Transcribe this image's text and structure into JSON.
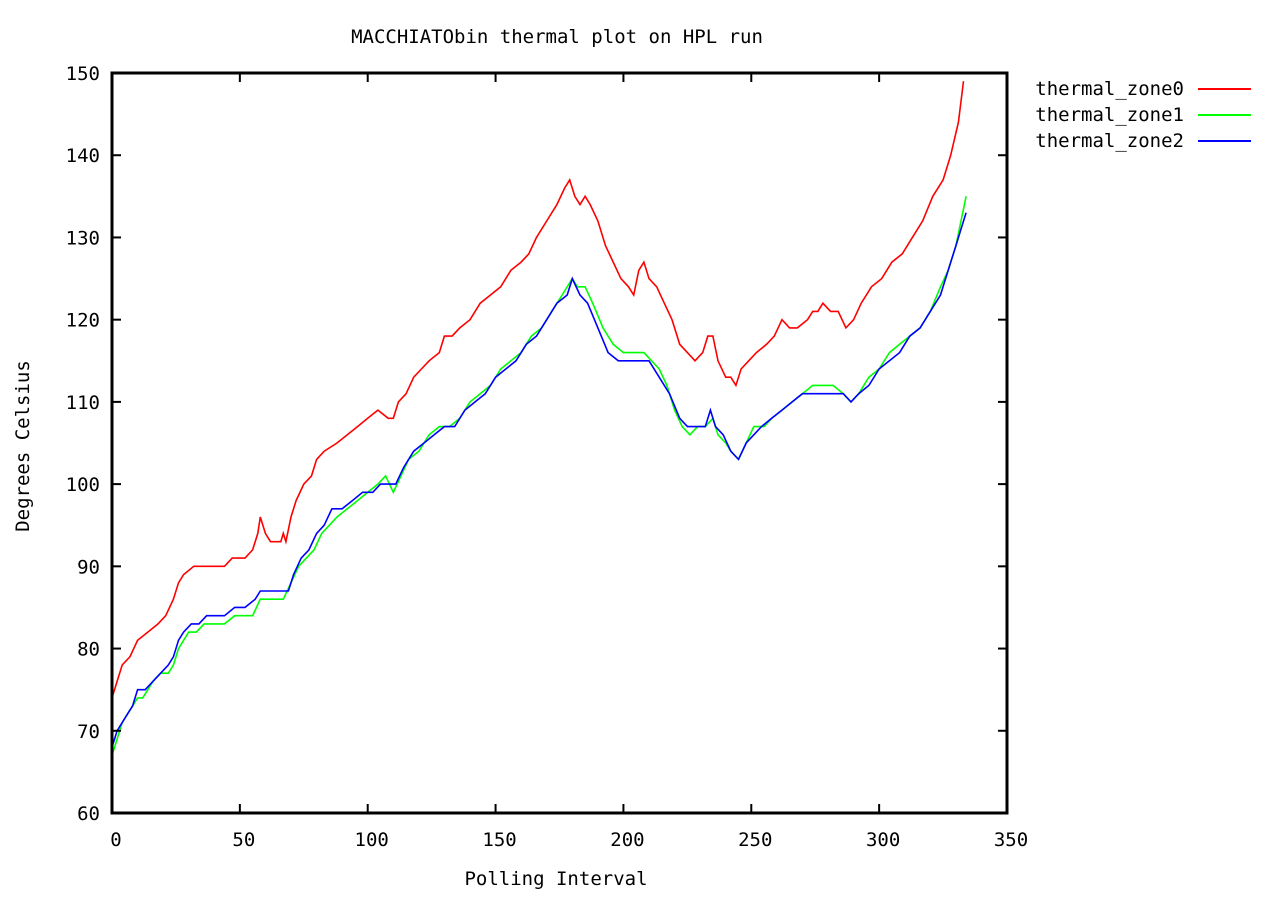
{
  "chart_data": {
    "type": "line",
    "title": "MACCHIATObin thermal plot on HPL run",
    "xlabel": "Polling Interval",
    "ylabel": "Degrees Celsius",
    "xlim": [
      0,
      350
    ],
    "ylim": [
      60,
      150
    ],
    "xticks": [
      0,
      50,
      100,
      150,
      200,
      250,
      300,
      350
    ],
    "yticks": [
      60,
      70,
      80,
      90,
      100,
      110,
      120,
      130,
      140,
      150
    ],
    "grid": false,
    "legend_position": "outside-top-right",
    "series": [
      {
        "name": "thermal_zone0",
        "color": "#ff0000",
        "points": [
          [
            0,
            74
          ],
          [
            2,
            76
          ],
          [
            4,
            78
          ],
          [
            7,
            79
          ],
          [
            10,
            81
          ],
          [
            14,
            82
          ],
          [
            18,
            83
          ],
          [
            21,
            84
          ],
          [
            24,
            86
          ],
          [
            26,
            88
          ],
          [
            28,
            89
          ],
          [
            32,
            90
          ],
          [
            35,
            90
          ],
          [
            40,
            90
          ],
          [
            44,
            90
          ],
          [
            47,
            91
          ],
          [
            52,
            91
          ],
          [
            55,
            92
          ],
          [
            57,
            94
          ],
          [
            58,
            96
          ],
          [
            60,
            94
          ],
          [
            62,
            93
          ],
          [
            64,
            93
          ],
          [
            66,
            93
          ],
          [
            67,
            94
          ],
          [
            68,
            93
          ],
          [
            70,
            96
          ],
          [
            72,
            98
          ],
          [
            75,
            100
          ],
          [
            78,
            101
          ],
          [
            80,
            103
          ],
          [
            83,
            104
          ],
          [
            88,
            105
          ],
          [
            92,
            106
          ],
          [
            96,
            107
          ],
          [
            100,
            108
          ],
          [
            104,
            109
          ],
          [
            108,
            108
          ],
          [
            110,
            108
          ],
          [
            112,
            110
          ],
          [
            115,
            111
          ],
          [
            118,
            113
          ],
          [
            121,
            114
          ],
          [
            124,
            115
          ],
          [
            128,
            116
          ],
          [
            130,
            118
          ],
          [
            133,
            118
          ],
          [
            136,
            119
          ],
          [
            140,
            120
          ],
          [
            144,
            122
          ],
          [
            148,
            123
          ],
          [
            152,
            124
          ],
          [
            156,
            126
          ],
          [
            160,
            127
          ],
          [
            163,
            128
          ],
          [
            166,
            130
          ],
          [
            170,
            132
          ],
          [
            174,
            134
          ],
          [
            177,
            136
          ],
          [
            179,
            137
          ],
          [
            181,
            135
          ],
          [
            183,
            134
          ],
          [
            185,
            135
          ],
          [
            187,
            134
          ],
          [
            190,
            132
          ],
          [
            193,
            129
          ],
          [
            196,
            127
          ],
          [
            199,
            125
          ],
          [
            202,
            124
          ],
          [
            204,
            123
          ],
          [
            206,
            126
          ],
          [
            208,
            127
          ],
          [
            210,
            125
          ],
          [
            213,
            124
          ],
          [
            216,
            122
          ],
          [
            219,
            120
          ],
          [
            222,
            117
          ],
          [
            225,
            116
          ],
          [
            228,
            115
          ],
          [
            231,
            116
          ],
          [
            233,
            118
          ],
          [
            235,
            118
          ],
          [
            237,
            115
          ],
          [
            240,
            113
          ],
          [
            242,
            113
          ],
          [
            244,
            112
          ],
          [
            246,
            114
          ],
          [
            249,
            115
          ],
          [
            252,
            116
          ],
          [
            256,
            117
          ],
          [
            259,
            118
          ],
          [
            262,
            120
          ],
          [
            265,
            119
          ],
          [
            268,
            119
          ],
          [
            272,
            120
          ],
          [
            274,
            121
          ],
          [
            276,
            121
          ],
          [
            278,
            122
          ],
          [
            281,
            121
          ],
          [
            284,
            121
          ],
          [
            287,
            119
          ],
          [
            290,
            120
          ],
          [
            293,
            122
          ],
          [
            297,
            124
          ],
          [
            301,
            125
          ],
          [
            305,
            127
          ],
          [
            309,
            128
          ],
          [
            313,
            130
          ],
          [
            317,
            132
          ],
          [
            321,
            135
          ],
          [
            325,
            137
          ],
          [
            328,
            140
          ],
          [
            331,
            144
          ],
          [
            333,
            149
          ]
        ]
      },
      {
        "name": "thermal_zone1",
        "color": "#00ff00",
        "points": [
          [
            0,
            67
          ],
          [
            2,
            69
          ],
          [
            4,
            71
          ],
          [
            6,
            72
          ],
          [
            8,
            73
          ],
          [
            10,
            74
          ],
          [
            12,
            74
          ],
          [
            14,
            75
          ],
          [
            16,
            76
          ],
          [
            19,
            77
          ],
          [
            22,
            77
          ],
          [
            24,
            78
          ],
          [
            26,
            80
          ],
          [
            28,
            81
          ],
          [
            30,
            82
          ],
          [
            33,
            82
          ],
          [
            36,
            83
          ],
          [
            40,
            83
          ],
          [
            44,
            83
          ],
          [
            48,
            84
          ],
          [
            52,
            84
          ],
          [
            55,
            84
          ],
          [
            58,
            86
          ],
          [
            61,
            86
          ],
          [
            64,
            86
          ],
          [
            67,
            86
          ],
          [
            70,
            88
          ],
          [
            73,
            90
          ],
          [
            76,
            91
          ],
          [
            79,
            92
          ],
          [
            82,
            94
          ],
          [
            85,
            95
          ],
          [
            88,
            96
          ],
          [
            92,
            97
          ],
          [
            96,
            98
          ],
          [
            100,
            99
          ],
          [
            104,
            100
          ],
          [
            107,
            101
          ],
          [
            110,
            99
          ],
          [
            113,
            101
          ],
          [
            116,
            103
          ],
          [
            120,
            104
          ],
          [
            124,
            106
          ],
          [
            128,
            107
          ],
          [
            132,
            107
          ],
          [
            136,
            108
          ],
          [
            140,
            110
          ],
          [
            144,
            111
          ],
          [
            148,
            112
          ],
          [
            152,
            114
          ],
          [
            156,
            115
          ],
          [
            160,
            116
          ],
          [
            164,
            118
          ],
          [
            168,
            119
          ],
          [
            172,
            121
          ],
          [
            176,
            123
          ],
          [
            180,
            125
          ],
          [
            182,
            124
          ],
          [
            185,
            124
          ],
          [
            188,
            122
          ],
          [
            192,
            119
          ],
          [
            196,
            117
          ],
          [
            200,
            116
          ],
          [
            204,
            116
          ],
          [
            208,
            116
          ],
          [
            211,
            115
          ],
          [
            214,
            114
          ],
          [
            217,
            112
          ],
          [
            220,
            109
          ],
          [
            223,
            107
          ],
          [
            226,
            106
          ],
          [
            229,
            107
          ],
          [
            232,
            107
          ],
          [
            235,
            108
          ],
          [
            237,
            106
          ],
          [
            240,
            105
          ],
          [
            242,
            104
          ],
          [
            245,
            103
          ],
          [
            248,
            105
          ],
          [
            251,
            107
          ],
          [
            255,
            107
          ],
          [
            258,
            108
          ],
          [
            262,
            109
          ],
          [
            266,
            110
          ],
          [
            270,
            111
          ],
          [
            274,
            112
          ],
          [
            278,
            112
          ],
          [
            282,
            112
          ],
          [
            286,
            111
          ],
          [
            289,
            110
          ],
          [
            292,
            111
          ],
          [
            296,
            113
          ],
          [
            300,
            114
          ],
          [
            304,
            116
          ],
          [
            308,
            117
          ],
          [
            312,
            118
          ],
          [
            316,
            119
          ],
          [
            320,
            121
          ],
          [
            324,
            124
          ],
          [
            327,
            126
          ],
          [
            330,
            129
          ],
          [
            332,
            132
          ],
          [
            334,
            135
          ]
        ]
      },
      {
        "name": "thermal_zone2",
        "color": "#0000ff",
        "points": [
          [
            0,
            68
          ],
          [
            2,
            70
          ],
          [
            4,
            71
          ],
          [
            6,
            72
          ],
          [
            8,
            73
          ],
          [
            10,
            75
          ],
          [
            13,
            75
          ],
          [
            16,
            76
          ],
          [
            19,
            77
          ],
          [
            22,
            78
          ],
          [
            24,
            79
          ],
          [
            26,
            81
          ],
          [
            28,
            82
          ],
          [
            31,
            83
          ],
          [
            34,
            83
          ],
          [
            37,
            84
          ],
          [
            40,
            84
          ],
          [
            44,
            84
          ],
          [
            48,
            85
          ],
          [
            52,
            85
          ],
          [
            56,
            86
          ],
          [
            58,
            87
          ],
          [
            62,
            87
          ],
          [
            66,
            87
          ],
          [
            69,
            87
          ],
          [
            71,
            89
          ],
          [
            74,
            91
          ],
          [
            77,
            92
          ],
          [
            80,
            94
          ],
          [
            83,
            95
          ],
          [
            86,
            97
          ],
          [
            90,
            97
          ],
          [
            94,
            98
          ],
          [
            98,
            99
          ],
          [
            102,
            99
          ],
          [
            105,
            100
          ],
          [
            108,
            100
          ],
          [
            111,
            100
          ],
          [
            114,
            102
          ],
          [
            118,
            104
          ],
          [
            122,
            105
          ],
          [
            126,
            106
          ],
          [
            130,
            107
          ],
          [
            134,
            107
          ],
          [
            138,
            109
          ],
          [
            142,
            110
          ],
          [
            146,
            111
          ],
          [
            150,
            113
          ],
          [
            154,
            114
          ],
          [
            158,
            115
          ],
          [
            162,
            117
          ],
          [
            166,
            118
          ],
          [
            170,
            120
          ],
          [
            174,
            122
          ],
          [
            178,
            123
          ],
          [
            180,
            125
          ],
          [
            183,
            123
          ],
          [
            186,
            122
          ],
          [
            190,
            119
          ],
          [
            194,
            116
          ],
          [
            198,
            115
          ],
          [
            202,
            115
          ],
          [
            206,
            115
          ],
          [
            210,
            115
          ],
          [
            214,
            113
          ],
          [
            218,
            111
          ],
          [
            222,
            108
          ],
          [
            225,
            107
          ],
          [
            228,
            107
          ],
          [
            232,
            107
          ],
          [
            234,
            109
          ],
          [
            236,
            107
          ],
          [
            239,
            106
          ],
          [
            242,
            104
          ],
          [
            245,
            103
          ],
          [
            248,
            105
          ],
          [
            251,
            106
          ],
          [
            254,
            107
          ],
          [
            258,
            108
          ],
          [
            262,
            109
          ],
          [
            266,
            110
          ],
          [
            270,
            111
          ],
          [
            274,
            111
          ],
          [
            278,
            111
          ],
          [
            282,
            111
          ],
          [
            286,
            111
          ],
          [
            289,
            110
          ],
          [
            292,
            111
          ],
          [
            296,
            112
          ],
          [
            300,
            114
          ],
          [
            304,
            115
          ],
          [
            308,
            116
          ],
          [
            312,
            118
          ],
          [
            316,
            119
          ],
          [
            320,
            121
          ],
          [
            324,
            123
          ],
          [
            327,
            126
          ],
          [
            330,
            129
          ],
          [
            332,
            131
          ],
          [
            334,
            133
          ]
        ]
      }
    ]
  }
}
